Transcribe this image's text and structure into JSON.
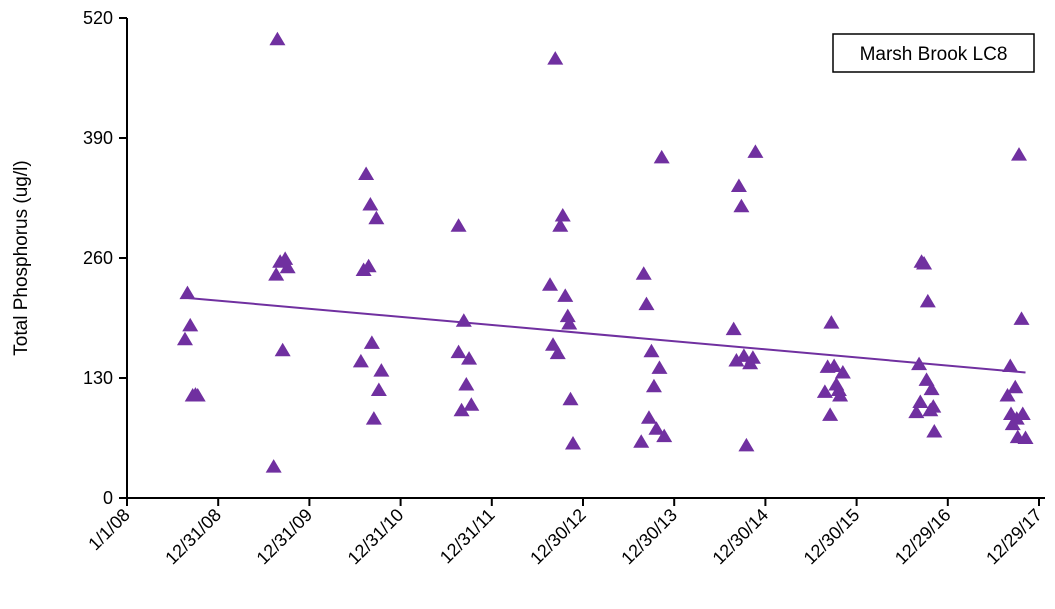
{
  "chart_data": {
    "type": "scatter",
    "title": "",
    "xlabel": "",
    "ylabel": "Total Phosphorus (ug/l)",
    "x_tick_labels": [
      "1/1/08",
      "12/31/08",
      "12/31/09",
      "12/31/10",
      "12/31/11",
      "12/30/12",
      "12/30/13",
      "12/30/14",
      "12/30/15",
      "12/29/16",
      "12/29/17"
    ],
    "y_tick_labels": [
      "0",
      "130",
      "260",
      "390",
      "520"
    ],
    "ylim": [
      0,
      520
    ],
    "xlim": [
      "1/1/08",
      "12/29/17"
    ],
    "grid": false,
    "legend": {
      "text": "Marsh Brook LC8",
      "placement": "top-right"
    },
    "marker": "triangle",
    "colors": {
      "series": "#7030A0"
    },
    "series": [
      {
        "points": [
          {
            "x": "2008-08-20",
            "y": 172
          },
          {
            "x": "2008-08-30",
            "y": 222
          },
          {
            "x": "2008-09-10",
            "y": 187
          },
          {
            "x": "2008-09-20",
            "y": 111
          },
          {
            "x": "2008-10-01",
            "y": 112
          },
          {
            "x": "2008-10-10",
            "y": 111
          },
          {
            "x": "2009-08-10",
            "y": 34
          },
          {
            "x": "2009-08-20",
            "y": 242
          },
          {
            "x": "2009-08-25",
            "y": 497
          },
          {
            "x": "2009-09-05",
            "y": 256
          },
          {
            "x": "2009-09-15",
            "y": 160
          },
          {
            "x": "2009-09-25",
            "y": 259
          },
          {
            "x": "2009-10-05",
            "y": 250
          },
          {
            "x": "2010-07-25",
            "y": 148
          },
          {
            "x": "2010-08-05",
            "y": 247
          },
          {
            "x": "2010-08-15",
            "y": 351
          },
          {
            "x": "2010-08-25",
            "y": 251
          },
          {
            "x": "2010-09-01",
            "y": 318
          },
          {
            "x": "2010-09-07",
            "y": 168
          },
          {
            "x": "2010-09-15",
            "y": 86
          },
          {
            "x": "2010-09-25",
            "y": 303
          },
          {
            "x": "2010-10-05",
            "y": 117
          },
          {
            "x": "2010-10-15",
            "y": 138
          },
          {
            "x": "2011-08-20",
            "y": 295
          },
          {
            "x": "2011-08-20",
            "y": 158
          },
          {
            "x": "2011-09-01",
            "y": 95
          },
          {
            "x": "2011-09-10",
            "y": 192
          },
          {
            "x": "2011-09-20",
            "y": 123
          },
          {
            "x": "2011-10-01",
            "y": 151
          },
          {
            "x": "2011-10-10",
            "y": 101
          },
          {
            "x": "2012-08-20",
            "y": 231
          },
          {
            "x": "2012-09-01",
            "y": 166
          },
          {
            "x": "2012-09-10",
            "y": 476
          },
          {
            "x": "2012-09-20",
            "y": 157
          },
          {
            "x": "2012-09-30",
            "y": 295
          },
          {
            "x": "2012-10-10",
            "y": 306
          },
          {
            "x": "2012-10-20",
            "y": 219
          },
          {
            "x": "2012-10-30",
            "y": 197
          },
          {
            "x": "2012-11-05",
            "y": 189
          },
          {
            "x": "2012-11-10",
            "y": 107
          },
          {
            "x": "2012-11-20",
            "y": 59
          },
          {
            "x": "2013-08-20",
            "y": 61
          },
          {
            "x": "2013-08-30",
            "y": 243
          },
          {
            "x": "2013-09-10",
            "y": 210
          },
          {
            "x": "2013-09-20",
            "y": 87
          },
          {
            "x": "2013-09-30",
            "y": 159
          },
          {
            "x": "2013-10-10",
            "y": 121
          },
          {
            "x": "2013-10-20",
            "y": 75
          },
          {
            "x": "2013-11-01",
            "y": 141
          },
          {
            "x": "2013-11-10",
            "y": 369
          },
          {
            "x": "2013-11-20",
            "y": 67
          },
          {
            "x": "2014-08-25",
            "y": 183
          },
          {
            "x": "2014-09-05",
            "y": 149
          },
          {
            "x": "2014-09-15",
            "y": 338
          },
          {
            "x": "2014-09-25",
            "y": 316
          },
          {
            "x": "2014-10-05",
            "y": 154
          },
          {
            "x": "2014-10-15",
            "y": 57
          },
          {
            "x": "2014-10-30",
            "y": 146
          },
          {
            "x": "2014-11-10",
            "y": 152
          },
          {
            "x": "2014-11-20",
            "y": 375
          },
          {
            "x": "2015-08-25",
            "y": 115
          },
          {
            "x": "2015-09-05",
            "y": 142
          },
          {
            "x": "2015-09-15",
            "y": 90
          },
          {
            "x": "2015-09-20",
            "y": 190
          },
          {
            "x": "2015-10-01",
            "y": 143
          },
          {
            "x": "2015-10-10",
            "y": 123
          },
          {
            "x": "2015-10-20",
            "y": 117
          },
          {
            "x": "2015-10-25",
            "y": 111
          },
          {
            "x": "2015-11-05",
            "y": 136
          },
          {
            "x": "2016-08-25",
            "y": 93
          },
          {
            "x": "2016-09-05",
            "y": 145
          },
          {
            "x": "2016-09-10",
            "y": 104
          },
          {
            "x": "2016-09-15",
            "y": 256
          },
          {
            "x": "2016-09-25",
            "y": 254
          },
          {
            "x": "2016-10-05",
            "y": 128
          },
          {
            "x": "2016-10-10",
            "y": 213
          },
          {
            "x": "2016-10-20",
            "y": 95
          },
          {
            "x": "2016-10-25",
            "y": 118
          },
          {
            "x": "2016-11-01",
            "y": 99
          },
          {
            "x": "2016-11-05",
            "y": 72
          },
          {
            "x": "2017-08-25",
            "y": 111
          },
          {
            "x": "2017-09-05",
            "y": 143
          },
          {
            "x": "2017-09-08",
            "y": 91
          },
          {
            "x": "2017-09-15",
            "y": 80
          },
          {
            "x": "2017-09-25",
            "y": 120
          },
          {
            "x": "2017-10-01",
            "y": 86
          },
          {
            "x": "2017-10-05",
            "y": 66
          },
          {
            "x": "2017-10-10",
            "y": 372
          },
          {
            "x": "2017-10-20",
            "y": 194
          },
          {
            "x": "2017-10-25",
            "y": 91
          },
          {
            "x": "2017-11-05",
            "y": 65
          }
        ]
      }
    ],
    "trendline": {
      "x": [
        "2008-08-20",
        "2017-11-05"
      ],
      "y": [
        217,
        136
      ]
    }
  }
}
